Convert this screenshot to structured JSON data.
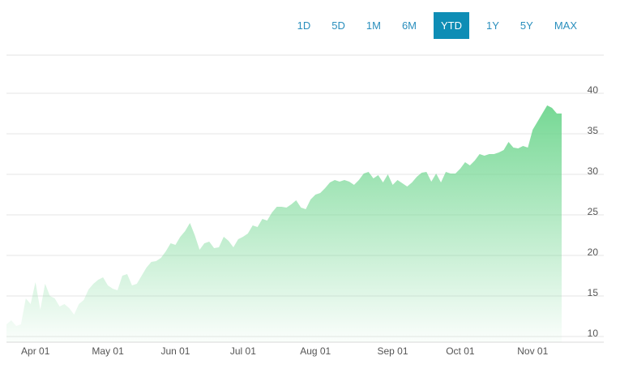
{
  "range_buttons": [
    "1D",
    "5D",
    "1M",
    "6M",
    "YTD",
    "1Y",
    "5Y",
    "MAX"
  ],
  "selected_range": "YTD",
  "chart_data": {
    "type": "area",
    "color": "#6fd68f",
    "categories": [
      null,
      null,
      null,
      null,
      null,
      null,
      "Apr 01",
      null,
      null,
      null,
      null,
      null,
      null,
      null,
      null,
      null,
      null,
      null,
      null,
      null,
      null,
      "May 01",
      null,
      null,
      null,
      null,
      null,
      null,
      null,
      null,
      null,
      null,
      null,
      null,
      null,
      "Jun 01",
      null,
      null,
      null,
      null,
      null,
      null,
      null,
      null,
      null,
      null,
      null,
      null,
      null,
      "Jul 01",
      null,
      null,
      null,
      null,
      null,
      null,
      null,
      null,
      null,
      null,
      null,
      null,
      null,
      null,
      "Aug 01",
      null,
      null,
      null,
      null,
      null,
      null,
      null,
      null,
      null,
      null,
      null,
      null,
      null,
      null,
      null,
      "Sep 01",
      null,
      null,
      null,
      null,
      null,
      null,
      null,
      null,
      null,
      null,
      null,
      null,
      null,
      "Oct 01",
      null,
      null,
      null,
      null,
      null,
      null,
      null,
      null,
      null,
      null,
      null,
      null,
      null,
      null,
      "Nov 01",
      null,
      null,
      null,
      null,
      null,
      null
    ],
    "values": [
      11.5,
      12,
      11.3,
      11.5,
      14.7,
      14,
      16.7,
      13.3,
      16.5,
      15,
      14.7,
      13.7,
      14,
      13.5,
      12.7,
      14,
      14.5,
      15.8,
      16.5,
      17,
      17.3,
      16.3,
      15.9,
      15.7,
      17.5,
      17.7,
      16.3,
      16.5,
      17.5,
      18.5,
      19.2,
      19.3,
      19.7,
      20.5,
      21.5,
      21.3,
      22.3,
      23,
      24,
      22.5,
      20.7,
      21.5,
      21.7,
      20.9,
      21,
      22.3,
      21.8,
      21,
      22,
      22.3,
      22.7,
      23.7,
      23.5,
      24.5,
      24.3,
      25.3,
      26,
      26,
      25.9,
      26.3,
      26.8,
      25.9,
      25.7,
      26.9,
      27.5,
      27.7,
      28.3,
      29,
      29.3,
      29.1,
      29.3,
      29.1,
      28.7,
      29.3,
      30.1,
      30.3,
      29.5,
      29.9,
      29,
      30,
      28.7,
      29.3,
      28.9,
      28.5,
      29,
      29.7,
      30.2,
      30.3,
      29.1,
      30.1,
      29,
      30.3,
      30.1,
      30.1,
      30.7,
      31.5,
      31.1,
      31.7,
      32.5,
      32.3,
      32.5,
      32.5,
      32.7,
      33,
      34,
      33.3,
      33.2,
      33.5,
      33.3,
      35.5,
      36.5,
      37.5,
      38.5,
      38.2,
      37.5,
      37.5
    ],
    "ylim": [
      9.3,
      44.7
    ],
    "yticks": [
      10,
      15,
      20,
      25,
      30,
      35,
      40
    ],
    "grid": true
  }
}
